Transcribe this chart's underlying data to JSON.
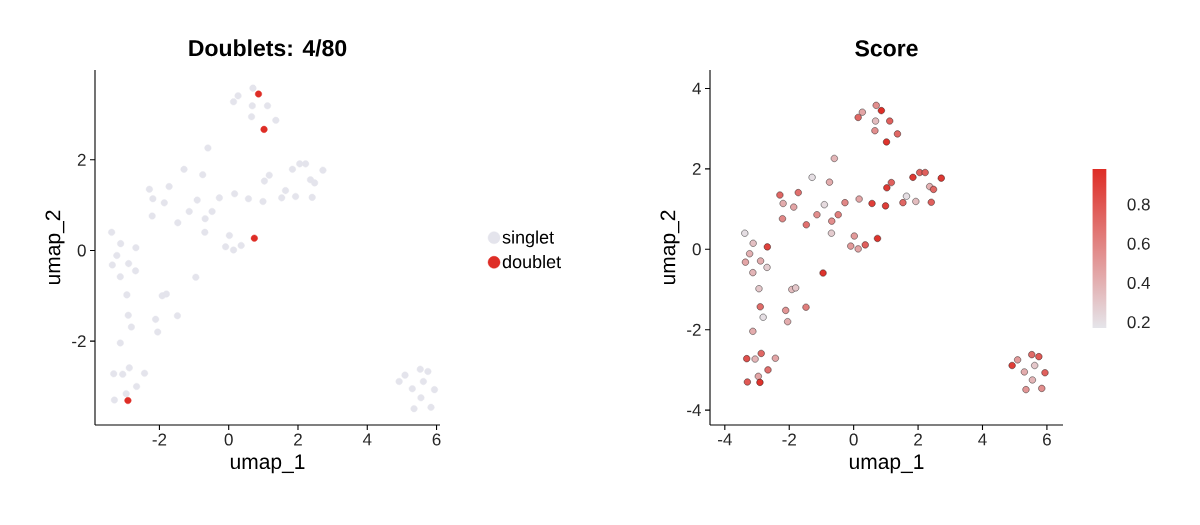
{
  "chart_data": [
    {
      "type": "scatter",
      "title": "Doublets: 4/80",
      "xlabel": "umap_1",
      "ylabel": "umap_2",
      "xlim": [
        -3.86,
        6.1
      ],
      "ylim": [
        -3.85,
        3.98
      ],
      "xticks": [
        -2,
        0,
        2,
        4,
        6
      ],
      "yticks": [
        -2,
        0,
        2
      ],
      "legend": "right",
      "marker": "circle",
      "grid": false,
      "series": [
        {
          "name": "singlet",
          "color": "#e4e4ec",
          "x": [
            0.7,
            0.27,
            0.14,
            0.68,
            1.12,
            0.66,
            1.36,
            -0.6,
            -1.29,
            -0.75,
            -2.29,
            -1.72,
            -2.19,
            -1.86,
            -2.21,
            -1.47,
            -1.14,
            -0.91,
            -0.68,
            -0.48,
            -0.27,
            -0.69,
            0.17,
            0.57,
            0.99,
            1.03,
            1.17,
            1.53,
            1.64,
            1.93,
            1.84,
            2.05,
            2.22,
            2.36,
            2.48,
            2.72,
            2.41,
            0.02,
            -0.09,
            0.14,
            0.36,
            -3.38,
            -3.12,
            -2.68,
            -3.23,
            -3.36,
            -2.89,
            -2.69,
            -3.13,
            -0.95,
            -2.94,
            -1.92,
            -1.8,
            -2.9,
            -2.81,
            -2.11,
            -2.05,
            -1.48,
            -3.13,
            -3.32,
            -3.06,
            -2.87,
            -2.43,
            -2.66,
            -2.96,
            -3.3,
            4.92,
            5.09,
            5.53,
            5.75,
            5.62,
            5.3,
            5.94,
            5.55,
            5.35,
            5.84
          ],
          "values": [
            3.58,
            3.41,
            3.28,
            3.19,
            3.19,
            2.95,
            2.87,
            2.26,
            1.79,
            1.67,
            1.35,
            1.41,
            1.14,
            1.05,
            0.76,
            0.61,
            0.86,
            1.11,
            0.7,
            0.86,
            1.16,
            0.4,
            1.25,
            1.14,
            1.08,
            1.53,
            1.66,
            1.16,
            1.32,
            1.19,
            1.79,
            1.91,
            1.91,
            1.56,
            1.49,
            1.77,
            1.17,
            0.33,
            0.08,
            0.01,
            0.11,
            0.4,
            0.15,
            0.06,
            -0.11,
            -0.32,
            -0.29,
            -0.45,
            -0.58,
            -0.59,
            -0.98,
            -1.0,
            -0.96,
            -1.43,
            -1.69,
            -1.52,
            -1.8,
            -1.44,
            -2.04,
            -2.72,
            -2.73,
            -2.59,
            -2.71,
            -3.0,
            -3.16,
            -3.3,
            -2.89,
            -2.75,
            -2.62,
            -2.67,
            -2.89,
            -3.05,
            -3.07,
            -3.25,
            -3.49,
            -3.46
          ]
        },
        {
          "name": "doublet",
          "color": "#de2d26",
          "x": [
            0.86,
            1.02,
            0.74,
            -2.91
          ],
          "values": [
            3.45,
            2.67,
            0.27,
            -3.31
          ]
        }
      ]
    },
    {
      "type": "scatter",
      "title": "Score",
      "xlabel": "umap_1",
      "ylabel": "umap_2",
      "xlim": [
        -4.46,
        6.5
      ],
      "ylim": [
        -4.37,
        4.46
      ],
      "xticks": [
        -4,
        -2,
        0,
        2,
        4,
        6
      ],
      "yticks": [
        -4,
        -2,
        0,
        2,
        4
      ],
      "marker": "circle",
      "grid": false,
      "clim": [
        0.17,
        0.98
      ],
      "cticks": [
        0.2,
        0.4,
        0.6,
        0.8
      ],
      "x": [
        0.7,
        0.27,
        0.14,
        0.86,
        0.68,
        1.12,
        0.66,
        1.36,
        1.02,
        -0.6,
        -1.29,
        -0.75,
        -2.29,
        -1.72,
        -2.19,
        -1.86,
        -2.21,
        -1.47,
        -1.14,
        -0.91,
        -0.68,
        -0.48,
        -0.27,
        -0.69,
        0.17,
        0.57,
        0.99,
        1.03,
        1.17,
        1.53,
        1.64,
        1.93,
        1.84,
        2.05,
        2.22,
        2.36,
        2.48,
        2.72,
        2.41,
        0.02,
        -0.09,
        0.14,
        0.36,
        0.74,
        -3.38,
        -3.12,
        -2.68,
        -3.23,
        -3.36,
        -2.89,
        -2.69,
        -3.13,
        -0.95,
        -2.94,
        -1.92,
        -1.8,
        -2.9,
        -2.81,
        -2.11,
        -2.05,
        -1.48,
        -3.13,
        -3.32,
        -3.06,
        -2.87,
        -2.43,
        -2.66,
        -2.96,
        -3.3,
        -2.91,
        4.92,
        5.09,
        5.53,
        5.75,
        5.62,
        5.3,
        5.94,
        5.55,
        5.35,
        5.84
      ],
      "values": [
        3.58,
        3.41,
        3.28,
        3.45,
        3.19,
        3.19,
        2.95,
        2.87,
        2.67,
        2.26,
        1.79,
        1.67,
        1.35,
        1.41,
        1.14,
        1.05,
        0.76,
        0.61,
        0.86,
        1.11,
        0.7,
        0.86,
        1.16,
        0.4,
        1.25,
        1.14,
        1.08,
        1.53,
        1.66,
        1.16,
        1.32,
        1.19,
        1.79,
        1.91,
        1.91,
        1.56,
        1.49,
        1.77,
        1.17,
        0.33,
        0.08,
        0.01,
        0.11,
        0.27,
        0.4,
        0.15,
        0.06,
        -0.11,
        -0.32,
        -0.29,
        -0.45,
        -0.58,
        -0.59,
        -0.98,
        -1.0,
        -0.96,
        -1.43,
        -1.69,
        -1.52,
        -1.8,
        -1.44,
        -2.04,
        -2.72,
        -2.73,
        -2.59,
        -2.71,
        -3.0,
        -3.16,
        -3.3,
        -3.31,
        -2.89,
        -2.75,
        -2.62,
        -2.67,
        -2.89,
        -3.05,
        -3.07,
        -3.25,
        -3.49,
        -3.46
      ],
      "cvalues": [
        0.55,
        0.45,
        0.72,
        0.97,
        0.35,
        0.75,
        0.55,
        0.72,
        0.95,
        0.38,
        0.2,
        0.42,
        0.72,
        0.68,
        0.42,
        0.45,
        0.58,
        0.68,
        0.55,
        0.22,
        0.55,
        0.62,
        0.58,
        0.28,
        0.45,
        0.9,
        0.9,
        0.92,
        0.75,
        0.72,
        0.2,
        0.35,
        0.92,
        0.75,
        0.75,
        0.4,
        0.72,
        0.92,
        0.75,
        0.5,
        0.5,
        0.45,
        0.75,
        0.95,
        0.2,
        0.33,
        0.88,
        0.4,
        0.45,
        0.42,
        0.28,
        0.38,
        0.95,
        0.3,
        0.35,
        0.3,
        0.7,
        0.2,
        0.52,
        0.42,
        0.62,
        0.42,
        0.82,
        0.38,
        0.72,
        0.45,
        0.68,
        0.45,
        0.78,
        0.95,
        0.9,
        0.5,
        0.7,
        0.78,
        0.3,
        0.42,
        0.75,
        0.38,
        0.52,
        0.55
      ]
    }
  ]
}
